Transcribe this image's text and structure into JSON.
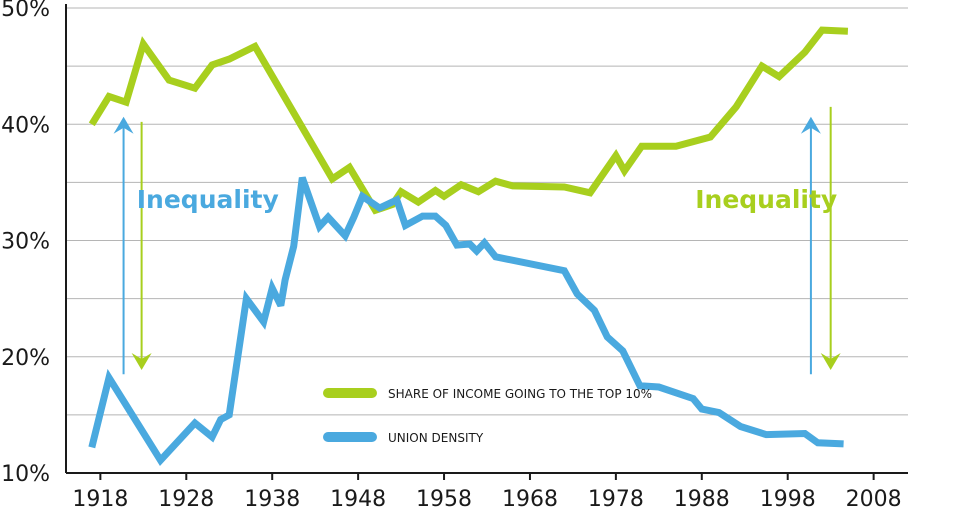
{
  "chart_data": {
    "type": "line",
    "title": "",
    "xlabel": "",
    "ylabel": "",
    "xlim": [
      1914,
      2012
    ],
    "ylim": [
      10,
      50
    ],
    "y_ticks": [
      {
        "value": 10,
        "label": "10%"
      },
      {
        "value": 20,
        "label": "20%"
      },
      {
        "value": 30,
        "label": "30%"
      },
      {
        "value": 40,
        "label": "40%"
      },
      {
        "value": 50,
        "label": "50%"
      }
    ],
    "y_gridlines": [
      10,
      15,
      20,
      25,
      30,
      35,
      40,
      45,
      50
    ],
    "x_ticks": [
      {
        "value": 1918,
        "label": "1918"
      },
      {
        "value": 1928,
        "label": "1928"
      },
      {
        "value": 1938,
        "label": "1938"
      },
      {
        "value": 1948,
        "label": "1948"
      },
      {
        "value": 1958,
        "label": "1958"
      },
      {
        "value": 1968,
        "label": "1968"
      },
      {
        "value": 1978,
        "label": "1978"
      },
      {
        "value": 1988,
        "label": "1988"
      },
      {
        "value": 1998,
        "label": "1998"
      },
      {
        "value": 2008,
        "label": "2008"
      }
    ],
    "series": [
      {
        "name": "SHARE OF INCOME GOING TO THE TOP 10%",
        "color": "#a8cf1e",
        "points": [
          [
            1917,
            40.0
          ],
          [
            1919,
            42.4
          ],
          [
            1921,
            41.9
          ],
          [
            1923,
            46.9
          ],
          [
            1926,
            43.8
          ],
          [
            1929,
            43.1
          ],
          [
            1931,
            45.1
          ],
          [
            1933,
            45.6
          ],
          [
            1936,
            46.7
          ],
          [
            1945,
            35.3
          ],
          [
            1947,
            36.3
          ],
          [
            1950,
            32.6
          ],
          [
            1952,
            33.1
          ],
          [
            1953,
            34.2
          ],
          [
            1955,
            33.3
          ],
          [
            1957,
            34.3
          ],
          [
            1958,
            33.8
          ],
          [
            1960,
            34.8
          ],
          [
            1962,
            34.2
          ],
          [
            1964,
            35.1
          ],
          [
            1966,
            34.7
          ],
          [
            1972,
            34.6
          ],
          [
            1975,
            34.1
          ],
          [
            1978,
            37.3
          ],
          [
            1979,
            36.0
          ],
          [
            1981,
            38.1
          ],
          [
            1985,
            38.1
          ],
          [
            1989,
            38.9
          ],
          [
            1992,
            41.5
          ],
          [
            1995,
            45.0
          ],
          [
            1997,
            44.1
          ],
          [
            2000,
            46.2
          ],
          [
            2002,
            48.1
          ],
          [
            2005,
            48.0
          ]
        ]
      },
      {
        "name": "UNION DENSITY",
        "color": "#4aa9df",
        "points": [
          [
            1917,
            12.2
          ],
          [
            1919,
            18.2
          ],
          [
            1925,
            11.1
          ],
          [
            1929,
            14.3
          ],
          [
            1931,
            13.1
          ],
          [
            1932,
            14.6
          ],
          [
            1933,
            15.0
          ],
          [
            1935,
            25.0
          ],
          [
            1937,
            23.0
          ],
          [
            1938,
            25.9
          ],
          [
            1939,
            24.4
          ],
          [
            1939.5,
            26.6
          ],
          [
            1940.5,
            29.5
          ],
          [
            1941.5,
            35.4
          ],
          [
            1943.5,
            31.2
          ],
          [
            1944.5,
            32.0
          ],
          [
            1946.5,
            30.4
          ],
          [
            1947.5,
            32.0
          ],
          [
            1948.5,
            33.8
          ],
          [
            1950.5,
            32.8
          ],
          [
            1952.5,
            33.5
          ],
          [
            1953.5,
            31.3
          ],
          [
            1955.5,
            32.1
          ],
          [
            1957,
            32.1
          ],
          [
            1958.2,
            31.3
          ],
          [
            1959.5,
            29.6
          ],
          [
            1961,
            29.7
          ],
          [
            1961.8,
            29.1
          ],
          [
            1962.7,
            29.8
          ],
          [
            1964,
            28.6
          ],
          [
            1972,
            27.4
          ],
          [
            1973.5,
            25.4
          ],
          [
            1975.5,
            24.0
          ],
          [
            1977,
            21.7
          ],
          [
            1978.8,
            20.5
          ],
          [
            1980.8,
            17.5
          ],
          [
            1983,
            17.4
          ],
          [
            1987,
            16.4
          ],
          [
            1988,
            15.5
          ],
          [
            1990,
            15.2
          ],
          [
            1992.5,
            14.0
          ],
          [
            1995.5,
            13.3
          ],
          [
            2000,
            13.4
          ],
          [
            2001.5,
            12.6
          ],
          [
            2004.5,
            12.5
          ]
        ]
      }
    ],
    "legend": {
      "placement": "bottom-center",
      "entries": [
        "SHARE OF INCOME GOING TO THE TOP 10%",
        "UNION DENSITY"
      ]
    },
    "annotations": [
      {
        "text": "Inequality",
        "color": "#4aa9df",
        "anchor_x": 1930.5,
        "anchor_y": 32.8
      },
      {
        "text": "Inequality",
        "color": "#a8cf1e",
        "anchor_x": 1995.5,
        "anchor_y": 32.8
      }
    ],
    "arrows": [
      {
        "color": "#4aa9df",
        "direction": "up",
        "x": 1920.7,
        "from": 18.5,
        "to": 40.3
      },
      {
        "color": "#a8cf1e",
        "direction": "down",
        "x": 1922.8,
        "from": 40.2,
        "to": 19.2
      },
      {
        "color": "#4aa9df",
        "direction": "up",
        "x": 2000.7,
        "from": 18.5,
        "to": 40.3
      },
      {
        "color": "#a8cf1e",
        "direction": "down",
        "x": 2003,
        "from": 41.5,
        "to": 19.2
      }
    ]
  }
}
